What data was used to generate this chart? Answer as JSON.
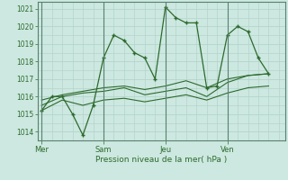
{
  "background_color": "#cce8e0",
  "grid_color": "#b0d0c8",
  "line_color": "#2d6a2d",
  "title": "Pression niveau de la mer( hPa )",
  "ylim": [
    1013.5,
    1021.4
  ],
  "yticks": [
    1014,
    1015,
    1016,
    1017,
    1018,
    1019,
    1020,
    1021
  ],
  "day_labels": [
    "Mer",
    "Sam",
    "Jeu",
    "Ven"
  ],
  "day_positions": [
    0,
    3,
    6,
    9
  ],
  "series1_x": [
    0,
    0.5,
    1,
    1.5,
    2,
    2.5,
    3,
    3.5,
    4,
    4.5,
    5,
    5.5,
    6,
    6.5,
    7,
    7.5,
    8,
    8.5,
    9,
    9.5,
    10,
    10.5,
    11
  ],
  "series1_y": [
    1015.2,
    1016.0,
    1016.0,
    1015.0,
    1013.8,
    1015.5,
    1018.2,
    1019.5,
    1019.2,
    1018.5,
    1018.2,
    1017.0,
    1021.1,
    1020.5,
    1020.2,
    1020.2,
    1016.5,
    1016.6,
    1019.5,
    1020.0,
    1019.7,
    1018.2,
    1017.3
  ],
  "series2_x": [
    0,
    1,
    2,
    3,
    4,
    5,
    6,
    7,
    8,
    9,
    10,
    11
  ],
  "series2_y": [
    1015.5,
    1016.0,
    1016.2,
    1016.3,
    1016.5,
    1016.1,
    1016.3,
    1016.5,
    1016.0,
    1016.8,
    1017.2,
    1017.3
  ],
  "series3_x": [
    0,
    1,
    2,
    3,
    4,
    5,
    6,
    7,
    8,
    9,
    10,
    11
  ],
  "series3_y": [
    1015.2,
    1015.8,
    1015.5,
    1015.8,
    1015.9,
    1015.7,
    1015.9,
    1016.1,
    1015.8,
    1016.2,
    1016.5,
    1016.6
  ],
  "series4_x": [
    0,
    1,
    2,
    3,
    4,
    5,
    6,
    7,
    8,
    9,
    10,
    11
  ],
  "series4_y": [
    1015.8,
    1016.1,
    1016.3,
    1016.5,
    1016.6,
    1016.4,
    1016.6,
    1016.9,
    1016.5,
    1017.0,
    1017.2,
    1017.3
  ]
}
